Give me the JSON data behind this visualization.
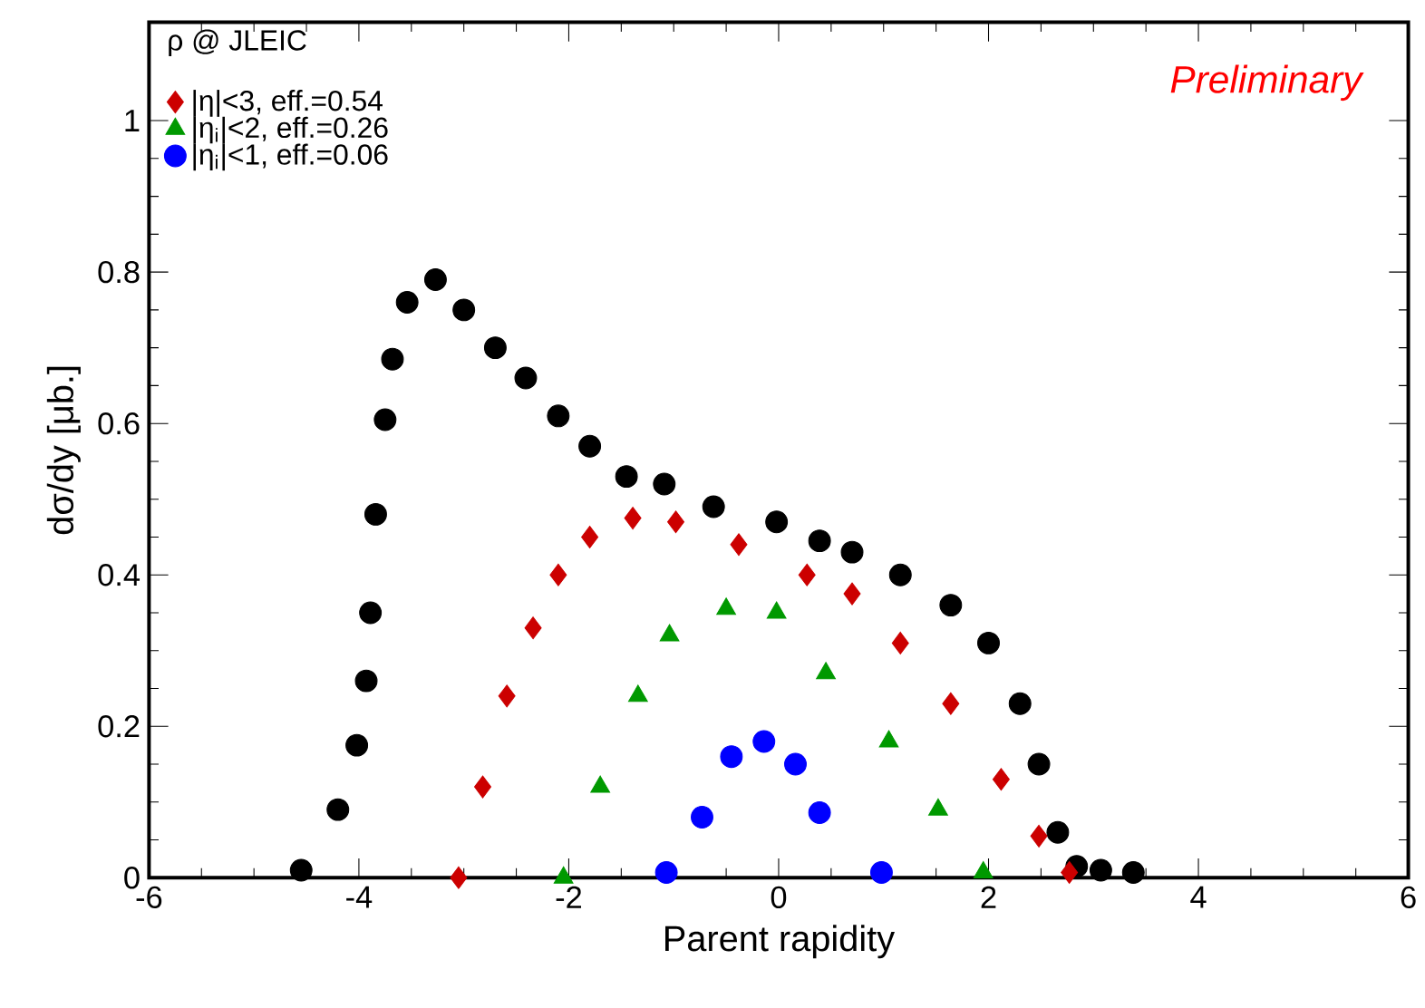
{
  "chart_data": {
    "type": "scatter",
    "title": "ρ @ JLEIC",
    "xlabel": "Parent rapidity",
    "ylabel": "dσ/dy [μb.]",
    "annotations": [
      "Preliminary"
    ],
    "xlim": [
      -6,
      6
    ],
    "xticks": [
      -6,
      -4,
      -2,
      0,
      2,
      4,
      6
    ],
    "ylim": [
      0,
      1.13
    ],
    "yticks": [
      0,
      0.2,
      0.4,
      0.6,
      0.8,
      1
    ],
    "legend": "top left",
    "grid": false,
    "series": [
      {
        "color": "#000000",
        "marker": "circle",
        "x": [
          -4.55,
          -4.2,
          -4.02,
          -3.93,
          -3.89,
          -3.84,
          -3.75,
          -3.68,
          -3.54,
          -3.27,
          -3.0,
          -2.7,
          -2.41,
          -2.1,
          -1.8,
          -1.45,
          -1.09,
          -0.62,
          -0.02,
          0.39,
          0.7,
          1.16,
          1.64,
          2.0,
          2.3,
          2.48,
          2.66,
          2.84,
          3.07,
          3.38
        ],
        "values": [
          0.01,
          0.09,
          0.175,
          0.26,
          0.35,
          0.48,
          0.605,
          0.685,
          0.76,
          0.79,
          0.75,
          0.7,
          0.66,
          0.61,
          0.57,
          0.53,
          0.52,
          0.49,
          0.47,
          0.445,
          0.43,
          0.4,
          0.36,
          0.31,
          0.23,
          0.15,
          0.06,
          0.015,
          0.01,
          0.007
        ]
      },
      {
        "name": "|η|<3, eff.=0.54",
        "color": "#cc0000",
        "marker": "diamond",
        "x": [
          -3.05,
          -2.82,
          -2.59,
          -2.34,
          -2.1,
          -1.8,
          -1.39,
          -0.98,
          -0.38,
          0.27,
          0.7,
          1.16,
          1.64,
          2.12,
          2.48,
          2.77
        ],
        "values": [
          0.0,
          0.12,
          0.24,
          0.33,
          0.4,
          0.45,
          0.475,
          0.47,
          0.44,
          0.4,
          0.375,
          0.31,
          0.23,
          0.13,
          0.055,
          0.007
        ]
      },
      {
        "name": "|η$_{i}$|<2, eff.=0.26",
        "color": "#009900",
        "marker": "triangle",
        "x": [
          -2.05,
          -1.7,
          -1.34,
          -1.04,
          -0.5,
          -0.02,
          0.45,
          1.05,
          1.52,
          1.95
        ],
        "values": [
          0.0,
          0.12,
          0.24,
          0.32,
          0.355,
          0.35,
          0.27,
          0.18,
          0.09,
          0.007
        ]
      },
      {
        "name": "|η$_{i}$|<1, eff.=0.06",
        "color": "#0000ff",
        "marker": "circle",
        "x": [
          -1.07,
          -0.73,
          -0.45,
          -0.14,
          0.16,
          0.39,
          0.98
        ],
        "values": [
          0.007,
          0.08,
          0.16,
          0.18,
          0.15,
          0.086,
          0.007
        ]
      }
    ]
  }
}
